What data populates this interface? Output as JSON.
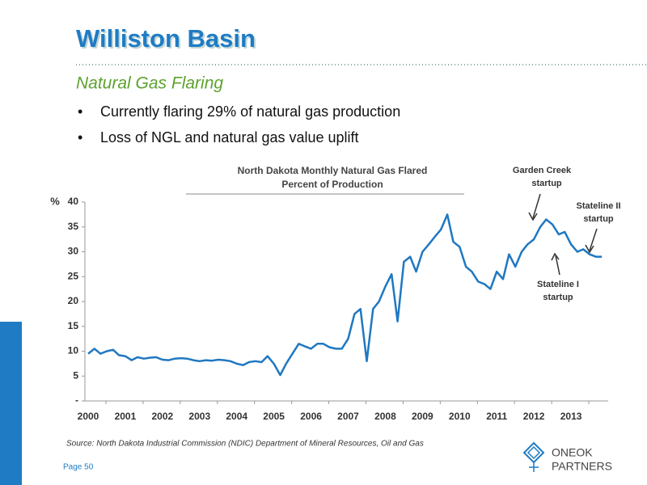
{
  "header": {
    "title": "Williston Basin",
    "subtitle": "Natural Gas Flaring",
    "bullets": [
      "Currently flaring 29% of natural gas production",
      "Loss of NGL and natural gas value uplift"
    ]
  },
  "chart_data": {
    "type": "line",
    "title": [
      "North Dakota Monthly Natural Gas Flared",
      "Percent of Production"
    ],
    "ylabel": "%",
    "color": "#1f78c1",
    "x": [
      2000.0,
      2000.17,
      2000.33,
      2000.5,
      2000.67,
      2000.83,
      2001.0,
      2001.17,
      2001.33,
      2001.5,
      2001.67,
      2001.83,
      2002.0,
      2002.17,
      2002.33,
      2002.5,
      2002.67,
      2002.83,
      2003.0,
      2003.17,
      2003.33,
      2003.5,
      2003.67,
      2003.83,
      2004.0,
      2004.17,
      2004.33,
      2004.5,
      2004.67,
      2004.83,
      2005.0,
      2005.17,
      2005.33,
      2005.5,
      2005.67,
      2005.83,
      2006.0,
      2006.17,
      2006.33,
      2006.5,
      2006.67,
      2006.83,
      2007.0,
      2007.17,
      2007.33,
      2007.5,
      2007.67,
      2007.83,
      2008.0,
      2008.17,
      2008.33,
      2008.5,
      2008.67,
      2008.83,
      2009.0,
      2009.17,
      2009.33,
      2009.5,
      2009.67,
      2009.83,
      2010.0,
      2010.17,
      2010.33,
      2010.5,
      2010.67,
      2010.83,
      2011.0,
      2011.17,
      2011.33,
      2011.5,
      2011.67,
      2011.83,
      2012.0,
      2012.17,
      2012.33,
      2012.5,
      2012.67,
      2012.83,
      2013.0,
      2013.17,
      2013.33,
      2013.5,
      2013.67,
      2013.83
    ],
    "values": [
      9.5,
      10.5,
      9.5,
      10,
      10.3,
      9.2,
      9,
      8.2,
      8.8,
      8.5,
      8.7,
      8.8,
      8.3,
      8.2,
      8.5,
      8.6,
      8.5,
      8.2,
      8,
      8.2,
      8.1,
      8.3,
      8.2,
      8,
      7.5,
      7.2,
      7.8,
      8,
      7.8,
      9,
      7.5,
      5.2,
      7.5,
      9.5,
      11.5,
      11,
      10.5,
      11.5,
      11.5,
      10.8,
      10.5,
      10.5,
      12.5,
      17.5,
      18.5,
      8,
      18.5,
      20,
      23,
      25.5,
      16,
      28,
      29,
      26,
      30,
      31.5,
      33,
      34.5,
      37.5,
      32,
      31,
      27,
      26,
      24,
      23.5,
      22.5,
      26,
      24.5,
      29.5,
      27,
      30,
      31.5,
      32.5,
      35,
      36.5,
      35.5,
      33.5,
      34,
      31.5,
      30,
      30.5,
      29.5,
      29,
      29
    ],
    "xlim": [
      2000,
      2014
    ],
    "xticks": [
      2000,
      2001,
      2002,
      2003,
      2004,
      2005,
      2006,
      2007,
      2008,
      2009,
      2010,
      2011,
      2012,
      2013
    ],
    "ylim": [
      0,
      40
    ],
    "yticks": [
      {
        "value": 0,
        "label": "-"
      },
      5,
      10,
      15,
      20,
      25,
      30,
      35,
      40
    ],
    "annotations": [
      {
        "lines": [
          "Garden Creek",
          "startup"
        ]
      },
      {
        "lines": [
          "Stateline II",
          "startup"
        ]
      },
      {
        "lines": [
          "Stateline I",
          "startup"
        ]
      }
    ],
    "source": "Source: North Dakota Industrial Commission (NDIC) Department of Mineral Resources, Oil and Gas"
  },
  "footer": {
    "page": "Page 50",
    "logo": [
      "ONEOK",
      "PARTNERS"
    ]
  }
}
